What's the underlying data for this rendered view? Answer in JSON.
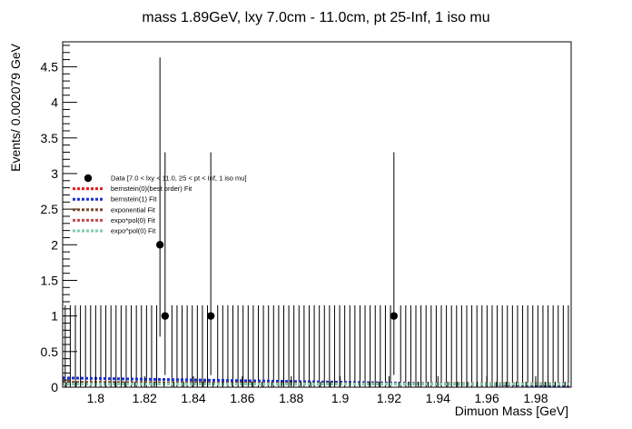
{
  "chart_data": {
    "type": "scatter",
    "title": "mass 1.89GeV, lxy 7.0cm - 11.0cm, pt 25-Inf, 1 iso mu",
    "xlabel": "Dimuon Mass [GeV]",
    "ylabel": "Events/ 0.002079 GeV",
    "xlim": [
      1.7865,
      1.9945
    ],
    "ylim": [
      0,
      4.85
    ],
    "x_ticks": [
      1.8,
      1.82,
      1.84,
      1.86,
      1.88,
      1.9,
      1.92,
      1.94,
      1.96,
      1.98
    ],
    "x_tick_labels": [
      "1.8",
      "1.82",
      "1.84",
      "1.86",
      "1.88",
      "1.9",
      "1.92",
      "1.94",
      "1.96",
      "1.98"
    ],
    "y_ticks": [
      0,
      0.5,
      1,
      1.5,
      2,
      2.5,
      3,
      3.5,
      4,
      4.5
    ],
    "y_tick_labels": [
      "0",
      "0.5",
      "1",
      "1.5",
      "2",
      "2.5",
      "3",
      "3.5",
      "4",
      "4.5"
    ],
    "bin_width": 0.002079,
    "empty_bin_error_up": 1.15,
    "data_points": [
      {
        "x": 1.8263,
        "y": 2,
        "err_low": 1.29,
        "err_high": 2.63
      },
      {
        "x": 1.8284,
        "y": 1,
        "err_low": 0.83,
        "err_high": 2.3
      },
      {
        "x": 1.8471,
        "y": 1,
        "err_low": 0.83,
        "err_high": 2.3
      },
      {
        "x": 1.922,
        "y": 1,
        "err_low": 0.83,
        "err_high": 2.3
      }
    ],
    "legend": [
      {
        "label": "Data [7.0 < lxy < 11.0, 25 < pt < Inf, 1 iso mu]",
        "style": "marker",
        "color": "#000000",
        "text_color": "#000000"
      },
      {
        "label": "bernstein(0)(best order) Fit",
        "style": "dashed",
        "color": "#e8191b",
        "text_color": "#e8191b"
      },
      {
        "label": "bernstein(1) Fit",
        "style": "dashed",
        "color": "#1a2fd6",
        "text_color": "#000000"
      },
      {
        "label": "exponential Fit",
        "style": "dashed",
        "color": "#7a4b2e",
        "text_color": "#000000"
      },
      {
        "label": "expo*pol(0) Fit",
        "style": "dashed",
        "color": "#c44a4a",
        "text_color": "#000000"
      },
      {
        "label": "expo^pol(0) Fit",
        "style": "dashed",
        "color": "#7fcca8",
        "text_color": "#000000"
      }
    ],
    "fit_curves": [
      {
        "color": "#e8191b",
        "y_start": 0.055,
        "y_end": 0.045
      },
      {
        "color": "#1a2fd6",
        "y_start": 0.13,
        "y_end": 0.02
      },
      {
        "color": "#7a4b2e",
        "y_start": 0.07,
        "y_end": 0.035
      },
      {
        "color": "#c44a4a",
        "y_start": 0.05,
        "y_end": 0.05
      },
      {
        "color": "#7fcca8",
        "y_start": 0.045,
        "y_end": 0.045
      }
    ],
    "grid": false,
    "legend_position": "middle-left"
  }
}
